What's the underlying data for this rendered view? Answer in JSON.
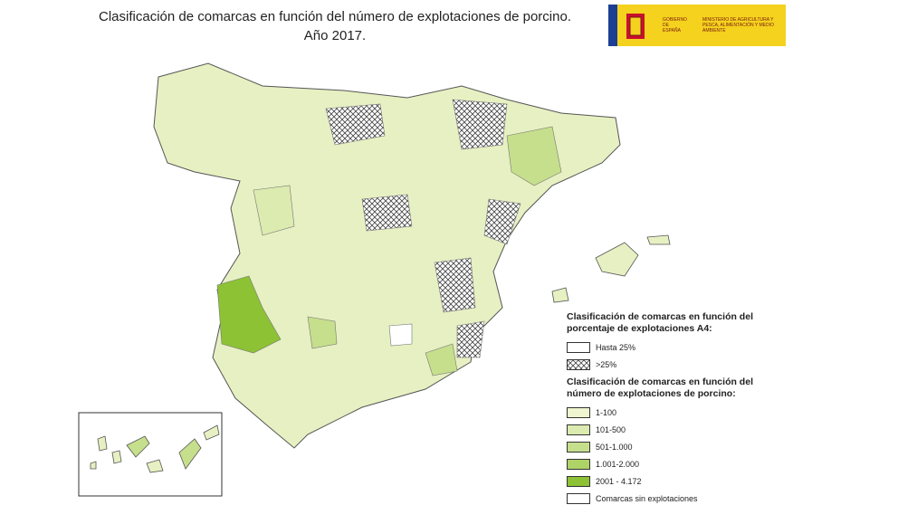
{
  "header": {
    "title": [
      "Clasificación de comarcas en función del número de explotaciones de porcino.",
      "Año 2017."
    ],
    "logo": {
      "government": "GOBIERNO DE ESPAÑA",
      "ministry": "MINISTERIO DE AGRICULTURA Y PESCA, ALIMENTACIÓN Y MEDIO AMBIENTE"
    }
  },
  "legend": {
    "share_title": "Clasificación de comarcas en función del porcentaje de explotaciones A4:",
    "share_items": [
      "Hasta 25%",
      ">25%"
    ],
    "count_title": "Clasificación de comarcas en función del número de explotaciones de porcino:",
    "count_items": [
      {
        "label": "1-100",
        "color": "#eef5cf"
      },
      {
        "label": "101-500",
        "color": "#dcebb0"
      },
      {
        "label": "501-1.000",
        "color": "#c6df8c"
      },
      {
        "label": "1.001-2.000",
        "color": "#aed467"
      },
      {
        "label": "2001 - 4.172",
        "color": "#8cc234"
      },
      {
        "label": "Comarcas sin explotaciones",
        "color": "#ffffff"
      }
    ]
  }
}
